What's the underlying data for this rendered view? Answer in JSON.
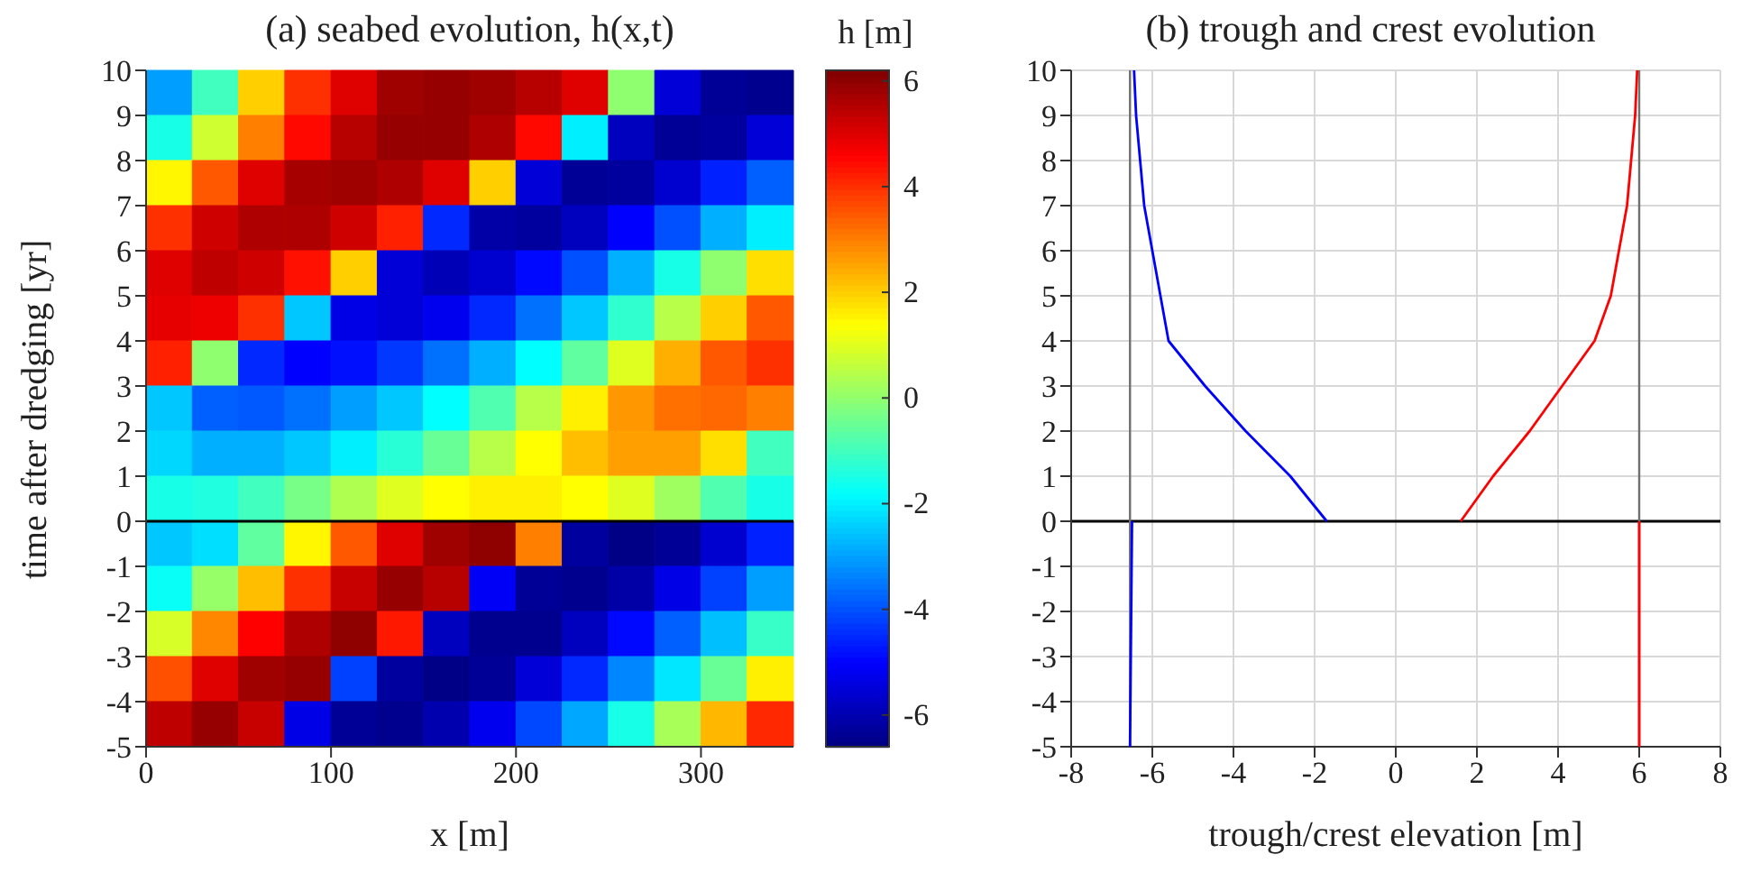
{
  "chart_data": [
    {
      "type": "heatmap",
      "title": "(a) seabed evolution, h(x,t)",
      "xlabel": "x [m]",
      "ylabel": "time after dredging [yr]",
      "clabel": "h [m]",
      "xlim": [
        0,
        350
      ],
      "xticks": [
        0,
        100,
        200,
        300
      ],
      "ylim": [
        -5,
        10
      ],
      "yticks": [
        -5,
        -4,
        -3,
        -2,
        -1,
        0,
        1,
        2,
        3,
        4,
        5,
        6,
        7,
        8,
        9,
        10
      ],
      "clim": [
        -6.6,
        6.2
      ],
      "cticks": [
        -6,
        -4,
        -2,
        0,
        2,
        4,
        6
      ],
      "cells": [
        [
          -3,
          -1,
          2,
          4,
          5,
          5.8,
          5.9,
          5.8,
          5.5,
          5,
          0,
          -5.5,
          -6.3,
          -6.4
        ],
        [
          -1.5,
          0.8,
          3,
          4.5,
          5.5,
          5.9,
          5.9,
          5.6,
          4.5,
          -2,
          -5.8,
          -6.3,
          -6.2,
          -5.5
        ],
        [
          1.5,
          3.5,
          5,
          5.7,
          5.8,
          5.6,
          5,
          2,
          -5.5,
          -6.3,
          -6.2,
          -5.6,
          -4.6,
          -3.8
        ],
        [
          4,
          5.2,
          5.6,
          5.6,
          5.2,
          4.2,
          -4.5,
          -6.1,
          -6.2,
          -5.8,
          -5,
          -4,
          -2.8,
          -2
        ],
        [
          5,
          5.4,
          5.2,
          4.4,
          2,
          -5.5,
          -5.9,
          -5.6,
          -4.9,
          -4,
          -2.8,
          -1.5,
          0,
          1.8
        ],
        [
          4.9,
          4.8,
          4,
          -2.5,
          -5.3,
          -5.5,
          -5.2,
          -4.5,
          -3.6,
          -2.5,
          -1.2,
          0.5,
          2,
          3.5
        ],
        [
          4.2,
          0,
          -4.5,
          -5,
          -4.8,
          -4.3,
          -3.6,
          -2.8,
          -1.8,
          -0.6,
          1,
          2.4,
          3.5,
          4
        ],
        [
          -2.5,
          -3.8,
          -3.9,
          -3.6,
          -3,
          -2.5,
          -1.8,
          -0.8,
          0.5,
          1.6,
          2.7,
          3.2,
          3.3,
          3
        ],
        [
          -2.3,
          -2.8,
          -2.8,
          -2.5,
          -2,
          -1.3,
          -0.5,
          0.5,
          1.4,
          2.2,
          2.6,
          2.6,
          1.8,
          -1
        ],
        [
          -1.5,
          -1.4,
          -1,
          -0.3,
          0.4,
          1,
          1.4,
          1.6,
          1.6,
          1.4,
          1,
          0.2,
          -0.8,
          -1.5
        ],
        [
          -2.5,
          -2.2,
          -0.6,
          1.5,
          3.5,
          5,
          5.8,
          6,
          3,
          -6.2,
          -6.5,
          -6.3,
          -5.6,
          -4.6
        ],
        [
          -1.7,
          0.1,
          2.2,
          4,
          5.3,
          5.9,
          5.5,
          -5.1,
          -6.3,
          -6.4,
          -6.1,
          -5.3,
          -4.2,
          -3
        ],
        [
          0.9,
          2.9,
          4.6,
          5.6,
          6,
          4.3,
          -5.8,
          -6.4,
          -6.4,
          -5.8,
          -4.9,
          -3.8,
          -2.6,
          -1.1
        ],
        [
          3.6,
          5,
          5.8,
          5.9,
          -4.2,
          -6.2,
          -6.5,
          -6.3,
          -5.5,
          -4.5,
          -3.3,
          -2.1,
          -0.5,
          1.6
        ],
        [
          5.4,
          5.9,
          5.3,
          -5.3,
          -6.3,
          -6.4,
          -6,
          -5.2,
          -4.1,
          -2.9,
          -1.5,
          0.3,
          2.3,
          4.1
        ]
      ],
      "ref_lines": [
        {
          "axis": "y",
          "value": 0,
          "color": "#000000"
        }
      ]
    },
    {
      "type": "line",
      "title": "(b) trough and crest evolution",
      "xlabel": "trough/crest elevation [m]",
      "xlim": [
        -8,
        8
      ],
      "xticks": [
        -8,
        -6,
        -4,
        -2,
        0,
        2,
        4,
        6,
        8
      ],
      "ylim": [
        -5,
        10
      ],
      "yticks": [
        -5,
        -4,
        -3,
        -2,
        -1,
        0,
        1,
        2,
        3,
        4,
        5,
        6,
        7,
        8,
        9,
        10
      ],
      "grid": true,
      "series": [
        {
          "color": "#0000ff",
          "x": [
            -6.55,
            -6.5
          ],
          "values": [
            -5,
            0
          ]
        },
        {
          "color": "#0000ff",
          "x": [
            -1.7,
            -2.6,
            -3.7,
            -4.7,
            -5.6,
            -5.8,
            -6.0,
            -6.2,
            -6.3,
            -6.4,
            -6.45
          ],
          "values": [
            0,
            1,
            2,
            3,
            4,
            5,
            6,
            7,
            8,
            9,
            10
          ]
        },
        {
          "color": "#ff0000",
          "x": [
            6.0,
            6.0
          ],
          "values": [
            -5,
            0
          ]
        },
        {
          "color": "#ff0000",
          "x": [
            1.6,
            2.4,
            3.3,
            4.1,
            4.9,
            5.3,
            5.5,
            5.7,
            5.8,
            5.9,
            5.95
          ],
          "values": [
            0,
            1,
            2,
            3,
            4,
            5,
            6,
            7,
            8,
            9,
            10
          ]
        }
      ],
      "ref_lines": [
        {
          "axis": "y",
          "value": 0,
          "color": "#000000"
        },
        {
          "axis": "x",
          "value": -6.55,
          "color": "#707070"
        },
        {
          "axis": "x",
          "value": 6.0,
          "color": "#707070"
        }
      ]
    }
  ]
}
